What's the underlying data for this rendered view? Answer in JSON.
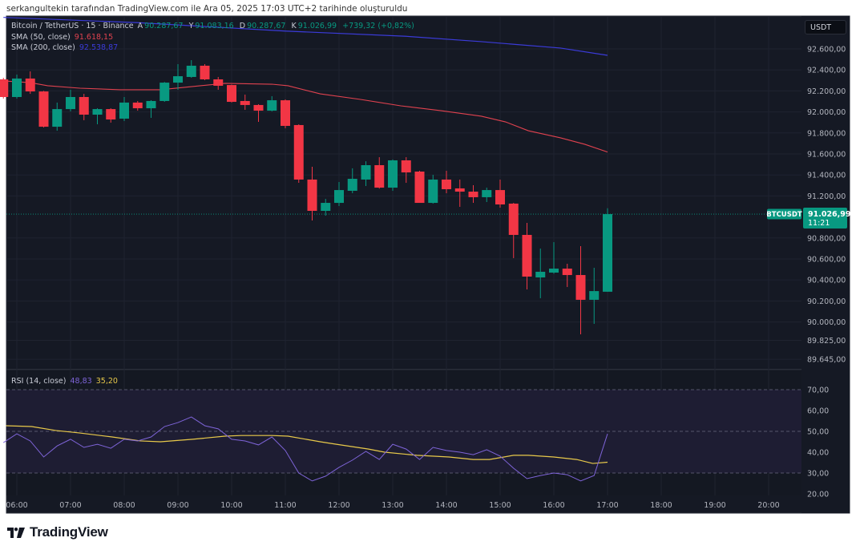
{
  "caption": "serkangultekin tarafından TradingView.com ile Ara 05, 2025 17:03 UTC+2 tarihinde oluşturuldu",
  "legend": {
    "symbol": "Bitcoin / TetherUS · 15 · Binance",
    "open_label": "A",
    "open": "90.287,67",
    "high_label": "Y",
    "high": "91.083,16",
    "low_label": "D",
    "low": "90.287,67",
    "close_label": "K",
    "close": "91.026,99",
    "change": "+739,32 (+0,82%)",
    "sma50_label": "SMA (50, close)",
    "sma50_value": "91.618,15",
    "sma200_label": "SMA (200, close)",
    "sma200_value": "92.538,87",
    "rsi_label": "RSI (14, close)",
    "rsi_value": "48,83",
    "rsi_ma_value": "35,20"
  },
  "currency_button": "USDT",
  "last_price": {
    "symbol": "BTCUSDT",
    "price": "91.026,99",
    "countdown": "11:21",
    "value": 91026.99
  },
  "logo_text": "TradingView",
  "colors": {
    "up": "#089981",
    "down": "#f23645",
    "sma50": "#e0424f",
    "sma200": "#3b3bd9",
    "rsi": "#7e64d8",
    "rsi_ma": "#e8c94a",
    "background": "#151924"
  },
  "chart_data": [
    {
      "type": "candlestick",
      "title": "Bitcoin / TetherUS · 15 · Binance",
      "interval_minutes": 15,
      "first_candle_time": "05:45",
      "ylim": [
        89554,
        92898
      ],
      "price_ticks": [
        {
          "value": 92600,
          "label": "92.600,00"
        },
        {
          "value": 92400,
          "label": "92.400,00"
        },
        {
          "value": 92200,
          "label": "92.200,00"
        },
        {
          "value": 92000,
          "label": "92.000,00"
        },
        {
          "value": 91800,
          "label": "91.800,00"
        },
        {
          "value": 91600,
          "label": "91.600,00"
        },
        {
          "value": 91400,
          "label": "91.400,00"
        },
        {
          "value": 91200,
          "label": "91.200,00"
        },
        {
          "value": 90800,
          "label": "90.800,00"
        },
        {
          "value": 90600,
          "label": "90.600,00"
        },
        {
          "value": 90400,
          "label": "90.400,00"
        },
        {
          "value": 90200,
          "label": "90.200,00"
        },
        {
          "value": 90000,
          "label": "90.000,00"
        },
        {
          "value": 89825,
          "label": "89.825,00"
        },
        {
          "value": 89645,
          "label": "89.645,00"
        }
      ],
      "time_ticks": [
        {
          "index": 1,
          "label": "06:00"
        },
        {
          "index": 5,
          "label": "07:00"
        },
        {
          "index": 9,
          "label": "08:00"
        },
        {
          "index": 13,
          "label": "09:00"
        },
        {
          "index": 17,
          "label": "10:00"
        },
        {
          "index": 21,
          "label": "11:00"
        },
        {
          "index": 25,
          "label": "12:00"
        },
        {
          "index": 29,
          "label": "13:00"
        },
        {
          "index": 33,
          "label": "14:00"
        },
        {
          "index": 37,
          "label": "15:00"
        },
        {
          "index": 41,
          "label": "16:00"
        },
        {
          "index": 45,
          "label": "17:00"
        },
        {
          "index": 49,
          "label": "18:00"
        },
        {
          "index": 53,
          "label": "19:00"
        },
        {
          "index": 57,
          "label": "20:00"
        }
      ],
      "ohlc": [
        [
          92310,
          92325,
          92127,
          92142
        ],
        [
          92142,
          92356,
          92127,
          92318
        ],
        [
          92318,
          92386,
          92172,
          92195
        ],
        [
          92195,
          92200,
          91852,
          91859
        ],
        [
          91859,
          92089,
          91821,
          92027
        ],
        [
          92027,
          92211,
          92005,
          92142
        ],
        [
          92142,
          92172,
          91921,
          91974
        ],
        [
          91974,
          92035,
          91882,
          92027
        ],
        [
          92027,
          92035,
          91898,
          91928
        ],
        [
          91936,
          92142,
          91913,
          92089
        ],
        [
          92089,
          92104,
          92012,
          92035
        ],
        [
          92035,
          92111,
          91943,
          92104
        ],
        [
          92104,
          92285,
          92096,
          92279
        ],
        [
          92279,
          92455,
          92211,
          92340
        ],
        [
          92333,
          92493,
          92325,
          92440
        ],
        [
          92440,
          92455,
          92302,
          92310
        ],
        [
          92310,
          92333,
          92211,
          92249
        ],
        [
          92256,
          92260,
          92089,
          92096
        ],
        [
          92104,
          92165,
          92020,
          92066
        ],
        [
          92066,
          92073,
          91905,
          92012
        ],
        [
          92012,
          92150,
          92005,
          92111
        ],
        [
          92111,
          92119,
          91844,
          91867
        ],
        [
          91875,
          91882,
          91325,
          91356
        ],
        [
          91356,
          91478,
          90966,
          91058
        ],
        [
          91058,
          91172,
          91012,
          91134
        ],
        [
          91134,
          91333,
          91104,
          91256
        ],
        [
          91249,
          91463,
          91226,
          91363
        ],
        [
          91356,
          91530,
          91295,
          91493
        ],
        [
          91493,
          91569,
          91270,
          91279
        ],
        [
          91279,
          91547,
          91249,
          91539
        ],
        [
          91539,
          91569,
          91325,
          91424
        ],
        [
          91432,
          91440,
          91134,
          91134
        ],
        [
          91134,
          91401,
          91127,
          91356
        ],
        [
          91356,
          91440,
          91226,
          91264
        ],
        [
          91272,
          91356,
          91096,
          91241
        ],
        [
          91241,
          91302,
          91134,
          91188
        ],
        [
          91188,
          91279,
          91142,
          91256
        ],
        [
          91256,
          91356,
          91088,
          91119
        ],
        [
          91127,
          91134,
          90608,
          90829
        ],
        [
          90829,
          90943,
          90310,
          90432
        ],
        [
          90424,
          90699,
          90226,
          90478
        ],
        [
          90470,
          90760,
          90460,
          90508
        ],
        [
          90508,
          90554,
          90333,
          90447
        ],
        [
          90447,
          90722,
          89882,
          90211
        ],
        [
          90211,
          90516,
          89982,
          90294
        ],
        [
          90288,
          91083,
          90288,
          91027
        ]
      ],
      "sma50": [
        [
          0,
          92295
        ],
        [
          2,
          92279
        ],
        [
          3.3,
          92249
        ],
        [
          5.7,
          92226
        ],
        [
          8.7,
          92211
        ],
        [
          11.7,
          92211
        ],
        [
          14,
          92241
        ],
        [
          16.5,
          92272
        ],
        [
          20,
          92264
        ],
        [
          21.2,
          92249
        ],
        [
          23.6,
          92172
        ],
        [
          26.6,
          92119
        ],
        [
          29.6,
          92058
        ],
        [
          32.6,
          92012
        ],
        [
          35.6,
          91959
        ],
        [
          37.4,
          91905
        ],
        [
          39.1,
          91821
        ],
        [
          41.5,
          91753
        ],
        [
          43.3,
          91692
        ],
        [
          45,
          91618
        ]
      ],
      "sma200": [
        [
          0,
          92900
        ],
        [
          10,
          92850
        ],
        [
          21,
          92770
        ],
        [
          30,
          92720
        ],
        [
          35.6,
          92669
        ],
        [
          41.5,
          92608
        ],
        [
          45,
          92539
        ]
      ]
    },
    {
      "type": "line",
      "title": "RSI (14, close)",
      "ylim": [
        16.5,
        79.2
      ],
      "bands": {
        "upper": 70,
        "middle": 50,
        "lower": 30
      },
      "rsi_ticks": [
        {
          "value": 70,
          "label": "70,00"
        },
        {
          "value": 60,
          "label": "60,00"
        },
        {
          "value": 50,
          "label": "50,00"
        },
        {
          "value": 40,
          "label": "40,00"
        },
        {
          "value": 30,
          "label": "30,00"
        },
        {
          "value": 20,
          "label": "20.00"
        }
      ],
      "rsi": [
        44.6,
        48.8,
        45.4,
        37.7,
        43,
        46.2,
        42.3,
        43.8,
        41.9,
        46.2,
        45.4,
        47.3,
        52.3,
        54.2,
        56.9,
        52.7,
        51.2,
        46.2,
        45.4,
        43.5,
        47.3,
        40.8,
        30,
        26.2,
        28.5,
        32.7,
        36.2,
        40.4,
        36.5,
        43.8,
        41.5,
        36.5,
        42.3,
        40.8,
        40,
        38.8,
        41.2,
        38.1,
        32.3,
        27.3,
        28.8,
        30,
        29.2,
        26.2,
        28.8,
        48.83
      ],
      "rsi_ma": [
        [
          0.2,
          52.7
        ],
        [
          2.1,
          52.3
        ],
        [
          3.9,
          50.4
        ],
        [
          5.7,
          49.2
        ],
        [
          8.1,
          47.3
        ],
        [
          10.2,
          45.4
        ],
        [
          11.7,
          45
        ],
        [
          14.1,
          46.2
        ],
        [
          16.5,
          47.7
        ],
        [
          17.7,
          48
        ],
        [
          20,
          48
        ],
        [
          21.2,
          47.7
        ],
        [
          23.6,
          45
        ],
        [
          24.8,
          43.8
        ],
        [
          27.2,
          41.5
        ],
        [
          28.4,
          40
        ],
        [
          30.8,
          38.5
        ],
        [
          33.2,
          37.7
        ],
        [
          35,
          36.5
        ],
        [
          36.2,
          36.5
        ],
        [
          38,
          38.5
        ],
        [
          39.1,
          38.5
        ],
        [
          41,
          37.7
        ],
        [
          42.7,
          36.5
        ],
        [
          43.9,
          34.6
        ],
        [
          45,
          35.2
        ]
      ]
    }
  ]
}
